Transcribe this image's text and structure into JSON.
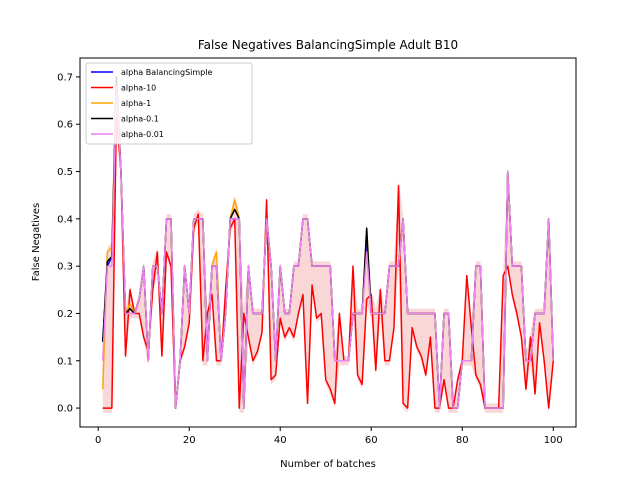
{
  "chart_data": {
    "type": "line",
    "title": "False Negatives BalancingSimple Adult B10",
    "xlabel": "Number of batches",
    "ylabel": "False Negatives",
    "xlim": [
      -4,
      105
    ],
    "ylim": [
      -0.04,
      0.74
    ],
    "xticks": [
      0,
      20,
      40,
      60,
      80,
      100
    ],
    "yticks": [
      0.0,
      0.1,
      0.2,
      0.3,
      0.4,
      0.5,
      0.6,
      0.7
    ],
    "xtick_labels": [
      "0",
      "20",
      "40",
      "60",
      "80",
      "100"
    ],
    "ytick_labels": [
      "0.0",
      "0.1",
      "0.2",
      "0.3",
      "0.4",
      "0.5",
      "0.6",
      "0.7"
    ],
    "grid": false,
    "legend_position": "upper-left",
    "x_start": 1,
    "series": [
      {
        "name": "alpha BalancingSimple",
        "color": "#0000ff",
        "values": [
          0.14,
          0.3,
          0.32,
          0.7,
          0.5,
          0.2,
          0.21,
          0.2,
          0.23,
          0.3,
          0.1,
          0.3,
          0.3,
          0.2,
          0.4,
          0.4,
          0.0,
          0.1,
          0.3,
          0.2,
          0.4,
          0.4,
          0.4,
          0.1,
          0.3,
          0.3,
          0.1,
          0.2,
          0.4,
          0.4,
          0.4,
          0.0,
          0.3,
          0.2,
          0.2,
          0.2,
          0.4,
          0.3,
          0.1,
          0.3,
          0.2,
          0.2,
          0.3,
          0.3,
          0.4,
          0.4,
          0.3,
          0.3,
          0.3,
          0.3,
          0.3,
          0.1,
          0.1,
          0.1,
          0.1,
          0.2,
          0.2,
          0.2,
          0.35,
          0.2,
          0.2,
          0.2,
          0.2,
          0.3,
          0.3,
          0.3,
          0.4,
          0.2,
          0.2,
          0.2,
          0.2,
          0.2,
          0.2,
          0.2,
          0.0,
          0.2,
          0.2,
          0.0,
          0.0,
          0.1,
          0.1,
          0.1,
          0.3,
          0.3,
          0.0,
          0.0,
          0.0,
          0.0,
          0.0,
          0.5,
          0.3,
          0.3,
          0.3,
          0.1,
          0.1,
          0.2,
          0.2,
          0.2,
          0.4,
          0.1
        ]
      },
      {
        "name": "alpha-10",
        "color": "#ff0000",
        "values": [
          0.0,
          0.0,
          0.0,
          0.62,
          0.5,
          0.11,
          0.25,
          0.2,
          0.2,
          0.15,
          0.12,
          0.25,
          0.33,
          0.11,
          0.33,
          0.3,
          0.0,
          0.1,
          0.13,
          0.18,
          0.38,
          0.41,
          0.1,
          0.2,
          0.24,
          0.1,
          0.1,
          0.25,
          0.38,
          0.4,
          0.0,
          0.2,
          0.15,
          0.1,
          0.12,
          0.16,
          0.44,
          0.06,
          0.07,
          0.19,
          0.15,
          0.17,
          0.15,
          0.2,
          0.24,
          0.01,
          0.26,
          0.19,
          0.2,
          0.06,
          0.04,
          0.01,
          0.2,
          0.1,
          0.1,
          0.3,
          0.07,
          0.05,
          0.23,
          0.24,
          0.08,
          0.25,
          0.1,
          0.1,
          0.17,
          0.47,
          0.01,
          0.0,
          0.17,
          0.13,
          0.11,
          0.07,
          0.15,
          0.0,
          0.0,
          0.06,
          0.0,
          0.0,
          0.06,
          0.1,
          0.28,
          0.17,
          0.07,
          0.05,
          0.0,
          0.0,
          0.0,
          0.0,
          0.28,
          0.3,
          0.24,
          0.2,
          0.15,
          0.04,
          0.15,
          0.03,
          0.18,
          0.1,
          0.0,
          0.1
        ]
      },
      {
        "name": "alpha-1",
        "color": "#ffa500",
        "values": [
          0.04,
          0.33,
          0.34,
          0.7,
          0.5,
          0.2,
          0.22,
          0.2,
          0.23,
          0.3,
          0.1,
          0.3,
          0.3,
          0.2,
          0.4,
          0.4,
          0.0,
          0.1,
          0.3,
          0.2,
          0.4,
          0.4,
          0.4,
          0.1,
          0.3,
          0.33,
          0.1,
          0.2,
          0.4,
          0.44,
          0.4,
          0.0,
          0.3,
          0.2,
          0.2,
          0.2,
          0.4,
          0.3,
          0.1,
          0.3,
          0.2,
          0.2,
          0.3,
          0.3,
          0.4,
          0.4,
          0.3,
          0.3,
          0.3,
          0.3,
          0.3,
          0.1,
          0.1,
          0.1,
          0.1,
          0.2,
          0.2,
          0.2,
          0.38,
          0.2,
          0.2,
          0.2,
          0.2,
          0.3,
          0.3,
          0.3,
          0.4,
          0.2,
          0.2,
          0.2,
          0.2,
          0.2,
          0.2,
          0.2,
          0.0,
          0.2,
          0.2,
          0.0,
          0.0,
          0.1,
          0.1,
          0.1,
          0.3,
          0.3,
          0.0,
          0.0,
          0.0,
          0.0,
          0.0,
          0.5,
          0.3,
          0.3,
          0.3,
          0.1,
          0.1,
          0.2,
          0.2,
          0.2,
          0.4,
          0.1
        ]
      },
      {
        "name": "alpha-0.1",
        "color": "#000000",
        "values": [
          0.14,
          0.31,
          0.32,
          0.7,
          0.5,
          0.2,
          0.21,
          0.2,
          0.23,
          0.3,
          0.1,
          0.3,
          0.3,
          0.2,
          0.4,
          0.4,
          0.0,
          0.1,
          0.3,
          0.2,
          0.4,
          0.4,
          0.4,
          0.1,
          0.3,
          0.3,
          0.1,
          0.2,
          0.4,
          0.42,
          0.4,
          0.0,
          0.3,
          0.2,
          0.2,
          0.2,
          0.4,
          0.3,
          0.1,
          0.3,
          0.2,
          0.2,
          0.3,
          0.3,
          0.4,
          0.4,
          0.3,
          0.3,
          0.3,
          0.3,
          0.3,
          0.1,
          0.1,
          0.1,
          0.1,
          0.2,
          0.2,
          0.2,
          0.38,
          0.2,
          0.2,
          0.2,
          0.2,
          0.3,
          0.3,
          0.3,
          0.4,
          0.2,
          0.2,
          0.2,
          0.2,
          0.2,
          0.2,
          0.2,
          0.0,
          0.2,
          0.2,
          0.0,
          0.0,
          0.1,
          0.1,
          0.1,
          0.3,
          0.3,
          0.0,
          0.0,
          0.0,
          0.0,
          0.0,
          0.5,
          0.3,
          0.3,
          0.3,
          0.1,
          0.1,
          0.2,
          0.2,
          0.2,
          0.4,
          0.1
        ]
      },
      {
        "name": "alpha-0.01",
        "color": "#ee82ee",
        "values": [
          0.1,
          0.3,
          0.3,
          0.68,
          0.5,
          0.2,
          0.2,
          0.2,
          0.23,
          0.3,
          0.1,
          0.3,
          0.3,
          0.2,
          0.4,
          0.4,
          0.0,
          0.1,
          0.3,
          0.2,
          0.4,
          0.4,
          0.4,
          0.1,
          0.3,
          0.3,
          0.1,
          0.2,
          0.4,
          0.4,
          0.4,
          0.0,
          0.3,
          0.2,
          0.2,
          0.2,
          0.4,
          0.3,
          0.1,
          0.3,
          0.2,
          0.2,
          0.3,
          0.3,
          0.4,
          0.4,
          0.3,
          0.3,
          0.3,
          0.3,
          0.3,
          0.1,
          0.1,
          0.1,
          0.1,
          0.2,
          0.2,
          0.2,
          0.33,
          0.2,
          0.2,
          0.2,
          0.2,
          0.3,
          0.3,
          0.3,
          0.4,
          0.2,
          0.2,
          0.2,
          0.2,
          0.2,
          0.2,
          0.2,
          0.0,
          0.2,
          0.2,
          0.0,
          0.0,
          0.1,
          0.1,
          0.1,
          0.3,
          0.3,
          0.0,
          0.0,
          0.0,
          0.0,
          0.0,
          0.5,
          0.3,
          0.3,
          0.3,
          0.1,
          0.1,
          0.2,
          0.2,
          0.2,
          0.4,
          0.1
        ]
      }
    ]
  }
}
